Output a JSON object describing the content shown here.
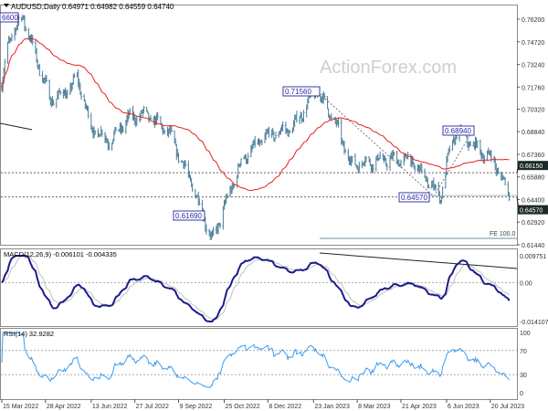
{
  "chart_data": {
    "type": "line",
    "title": "AUDUSD,Daily",
    "ohlc_header": "0.64971 0.64982 0.64559 0.64740",
    "watermark": "ActionForex.com",
    "price_axis": {
      "ylim": [
        0.6144,
        0.762
      ],
      "ticks": [
        "0.76200",
        "0.74720",
        "0.73240",
        "0.71760",
        "0.70320",
        "0.68840",
        "0.67360",
        "0.65880",
        "0.64400",
        "0.62920",
        "0.61440"
      ],
      "ticks_values": [
        0.762,
        0.7472,
        0.7324,
        0.7176,
        0.7032,
        0.6884,
        0.6736,
        0.6588,
        0.644,
        0.6292,
        0.6144
      ]
    },
    "x_ticks": [
      {
        "date": "2022-03-15",
        "label": "15 Mar 2022"
      },
      {
        "date": "2022-04-28",
        "label": "28 Apr 2022"
      },
      {
        "date": "2022-06-13",
        "label": "13 Jun 2022"
      },
      {
        "date": "2022-07-27",
        "label": "27 Jul 2022"
      },
      {
        "date": "2022-09-09",
        "label": "9 Sep 2022"
      },
      {
        "date": "2022-10-25",
        "label": "25 Oct 2022"
      },
      {
        "date": "2022-12-08",
        "label": "8 Dec 2022"
      },
      {
        "date": "2023-01-23",
        "label": "23 Jan 2023"
      },
      {
        "date": "2023-03-08",
        "label": "8 Mar 2023"
      },
      {
        "date": "2023-04-21",
        "label": "21 Apr 2023"
      },
      {
        "date": "2023-06-06",
        "label": "6 Jun 2023"
      },
      {
        "date": "2023-07-20",
        "label": "20 Jul 2023"
      }
    ],
    "x_range": [
      "2022-03-15",
      "2023-08-08"
    ],
    "price_path": [
      [
        "2022-03-15",
        0.718
      ],
      [
        "2022-03-22",
        0.748
      ],
      [
        "2022-04-05",
        0.764
      ],
      [
        "2022-04-19",
        0.736
      ],
      [
        "2022-05-03",
        0.709
      ],
      [
        "2022-05-21",
        0.715
      ],
      [
        "2022-05-30",
        0.724
      ],
      [
        "2022-06-13",
        0.691
      ],
      [
        "2022-07-02",
        0.682
      ],
      [
        "2022-07-20",
        0.697
      ],
      [
        "2022-08-07",
        0.7
      ],
      [
        "2022-08-30",
        0.688
      ],
      [
        "2022-09-22",
        0.655
      ],
      [
        "2022-10-13",
        0.6169
      ],
      [
        "2022-10-29",
        0.646
      ],
      [
        "2022-11-12",
        0.67
      ],
      [
        "2022-12-05",
        0.685
      ],
      [
        "2023-01-02",
        0.691
      ],
      [
        "2023-01-26",
        0.7156
      ],
      [
        "2023-02-12",
        0.697
      ],
      [
        "2023-03-02",
        0.667
      ],
      [
        "2023-04-04",
        0.67
      ],
      [
        "2023-05-01",
        0.67
      ],
      [
        "2023-05-31",
        0.6457
      ],
      [
        "2023-06-07",
        0.67
      ],
      [
        "2023-06-16",
        0.6894
      ],
      [
        "2023-07-09",
        0.676
      ],
      [
        "2023-07-23",
        0.67
      ],
      [
        "2023-08-08",
        0.6474
      ]
    ],
    "moving_average_color": "#e8201e",
    "bar_color": "#4f7f99",
    "annotations": {
      "top_left_partial": "6600",
      "high_2023": "0.71560",
      "high_jun": "0.68940",
      "low_may": "0.64570",
      "low_2022": "0.61690",
      "fe": "FE 100.0"
    },
    "hlines": [
      {
        "value": 0.6615,
        "label": "0.66150",
        "hidden_tick": "0.65880"
      },
      {
        "value": 0.6457,
        "label": "0.64570",
        "hidden_tick": "0.64400"
      }
    ],
    "macd": {
      "label": "MACD(12,26,9) -0.006101 -0.004335",
      "ylim": [
        -0.014107,
        0.009751
      ],
      "ticks": [
        "0.009751",
        "0.00",
        "-0.014107"
      ],
      "line_color": "#1c1c8c",
      "signal_color": "#c0c0c0"
    },
    "rsi": {
      "label": "RSI(14) 32.9282",
      "ylim": [
        0,
        100
      ],
      "ticks": [
        "100",
        "70",
        "30",
        "0"
      ],
      "color": "#3b9cf0"
    }
  }
}
